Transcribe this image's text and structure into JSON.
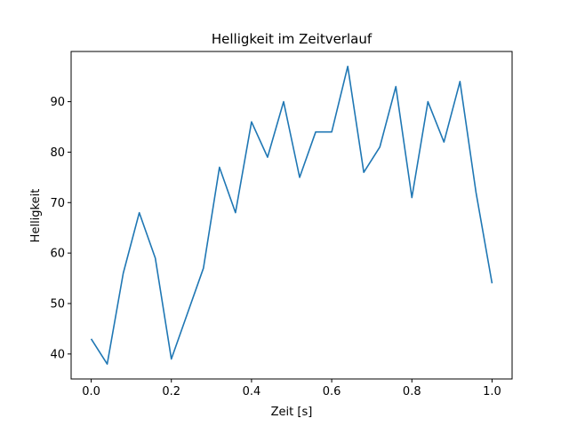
{
  "chart_data": {
    "type": "line",
    "title": "Helligkeit im Zeitverlauf",
    "xlabel": "Zeit [s]",
    "ylabel": "Helligkeit",
    "xlim": [
      -0.05,
      1.05
    ],
    "ylim": [
      35.05,
      99.95
    ],
    "grid": false,
    "x_ticks": [
      0.0,
      0.2,
      0.4,
      0.6,
      0.8,
      1.0
    ],
    "x_tick_labels": [
      "0.0",
      "0.2",
      "0.4",
      "0.6",
      "0.8",
      "1.0"
    ],
    "y_ticks": [
      40,
      50,
      60,
      70,
      80,
      90
    ],
    "y_tick_labels": [
      "40",
      "50",
      "60",
      "70",
      "80",
      "90"
    ],
    "series": [
      {
        "color": "#1f77b4",
        "x": [
          0.0,
          0.04,
          0.08,
          0.12,
          0.16,
          0.2,
          0.24,
          0.28,
          0.32,
          0.36,
          0.4,
          0.44,
          0.48,
          0.52,
          0.56,
          0.6,
          0.64,
          0.68,
          0.72,
          0.76,
          0.8,
          0.84,
          0.88,
          0.92,
          0.96,
          1.0
        ],
        "y": [
          43,
          38,
          56,
          68,
          59,
          39,
          48,
          57,
          77,
          68,
          86,
          79,
          90,
          75,
          84,
          84,
          97,
          76,
          81,
          93,
          71,
          90,
          82,
          94,
          72,
          54
        ]
      }
    ]
  }
}
